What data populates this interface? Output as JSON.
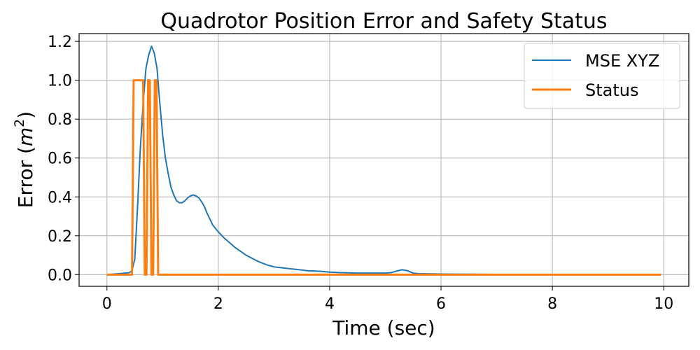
{
  "chart_data": {
    "type": "line",
    "title": "Quadrotor Position Error and Safety Status",
    "xlabel": "Time (sec)",
    "ylabel": "Error (m²)",
    "ylabel_parts": [
      "Error (",
      "m",
      "2",
      ")"
    ],
    "xlim": [
      -0.5,
      10.45
    ],
    "ylim": [
      -0.06,
      1.24
    ],
    "x_ticks": [
      0,
      2,
      4,
      6,
      8,
      10
    ],
    "x_tick_labels": [
      "0",
      "2",
      "4",
      "6",
      "8",
      "10"
    ],
    "y_ticks": [
      0.0,
      0.2,
      0.4,
      0.6,
      0.8,
      1.0,
      1.2
    ],
    "y_tick_labels": [
      "0.0",
      "0.2",
      "0.4",
      "0.6",
      "0.8",
      "1.0",
      "1.2"
    ],
    "grid": true,
    "legend_position": "top-right",
    "series": [
      {
        "name": "MSE XYZ",
        "color": "#1f77b4",
        "x": [
          0,
          0.2,
          0.4,
          0.45,
          0.5,
          0.55,
          0.6,
          0.65,
          0.7,
          0.75,
          0.8,
          0.85,
          0.9,
          0.95,
          1.0,
          1.05,
          1.1,
          1.15,
          1.2,
          1.25,
          1.3,
          1.35,
          1.4,
          1.45,
          1.5,
          1.55,
          1.6,
          1.65,
          1.7,
          1.75,
          1.8,
          1.85,
          1.9,
          2.0,
          2.1,
          2.2,
          2.3,
          2.4,
          2.5,
          2.6,
          2.7,
          2.8,
          2.9,
          3.0,
          3.2,
          3.4,
          3.6,
          3.8,
          4.0,
          4.2,
          4.5,
          5.0,
          5.1,
          5.2,
          5.3,
          5.4,
          5.5,
          5.6,
          6.0,
          7.0,
          8.0,
          9.0,
          9.95
        ],
        "y": [
          0.0,
          0.005,
          0.01,
          0.02,
          0.08,
          0.35,
          0.65,
          0.88,
          1.06,
          1.13,
          1.175,
          1.14,
          1.06,
          0.88,
          0.72,
          0.6,
          0.52,
          0.45,
          0.41,
          0.38,
          0.37,
          0.37,
          0.38,
          0.395,
          0.405,
          0.41,
          0.405,
          0.395,
          0.375,
          0.35,
          0.315,
          0.285,
          0.255,
          0.22,
          0.19,
          0.165,
          0.14,
          0.12,
          0.1,
          0.085,
          0.07,
          0.058,
          0.048,
          0.04,
          0.033,
          0.027,
          0.02,
          0.018,
          0.013,
          0.01,
          0.008,
          0.008,
          0.01,
          0.018,
          0.025,
          0.02,
          0.008,
          0.005,
          0.003,
          0.001,
          0.0,
          0.0,
          0.0
        ]
      },
      {
        "name": "Status",
        "color": "#ff7f0e",
        "x": [
          0,
          0.45,
          0.48,
          0.65,
          0.68,
          0.71,
          0.74,
          0.77,
          0.8,
          0.83,
          0.86,
          0.89,
          0.92,
          0.95,
          0.98,
          9.95
        ],
        "y": [
          0,
          0,
          1,
          1,
          0,
          0,
          1,
          1,
          0,
          0,
          1,
          1,
          0,
          0,
          0,
          0
        ]
      }
    ]
  }
}
